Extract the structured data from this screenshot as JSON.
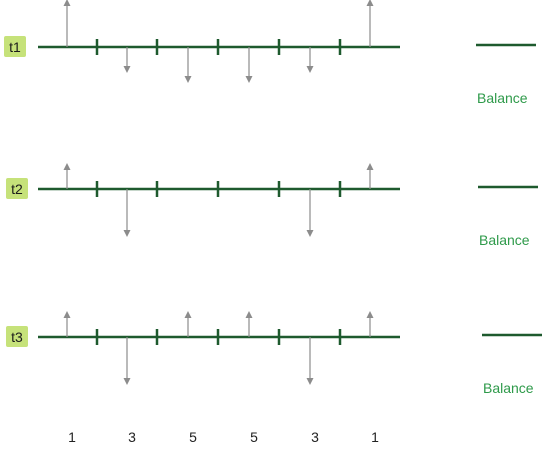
{
  "colors": {
    "timeline": "#1e5a2e",
    "arrow": "#8c8c8c",
    "label_bg": "#c6e27a",
    "balance_text": "#2e9a4a"
  },
  "rows": [
    {
      "label": "t1",
      "balance_label": "Balance",
      "arrows": [
        {
          "segment": 0,
          "direction": "up",
          "size": "large"
        },
        {
          "segment": 1,
          "direction": "down",
          "size": "small"
        },
        {
          "segment": 2,
          "direction": "down",
          "size": "medium"
        },
        {
          "segment": 3,
          "direction": "down",
          "size": "medium"
        },
        {
          "segment": 4,
          "direction": "down",
          "size": "small"
        },
        {
          "segment": 5,
          "direction": "up",
          "size": "large"
        }
      ]
    },
    {
      "label": "t2",
      "balance_label": "Balance",
      "arrows": [
        {
          "segment": 0,
          "direction": "up",
          "size": "small"
        },
        {
          "segment": 1,
          "direction": "down",
          "size": "large"
        },
        {
          "segment": 4,
          "direction": "down",
          "size": "large"
        },
        {
          "segment": 5,
          "direction": "up",
          "size": "small"
        }
      ]
    },
    {
      "label": "t3",
      "balance_label": "Balance",
      "arrows": [
        {
          "segment": 0,
          "direction": "up",
          "size": "small"
        },
        {
          "segment": 1,
          "direction": "down",
          "size": "large"
        },
        {
          "segment": 2,
          "direction": "up",
          "size": "small"
        },
        {
          "segment": 3,
          "direction": "up",
          "size": "small"
        },
        {
          "segment": 4,
          "direction": "down",
          "size": "large"
        },
        {
          "segment": 5,
          "direction": "up",
          "size": "small"
        }
      ]
    }
  ],
  "column_labels": [
    "1",
    "3",
    "5",
    "5",
    "3",
    "1"
  ]
}
